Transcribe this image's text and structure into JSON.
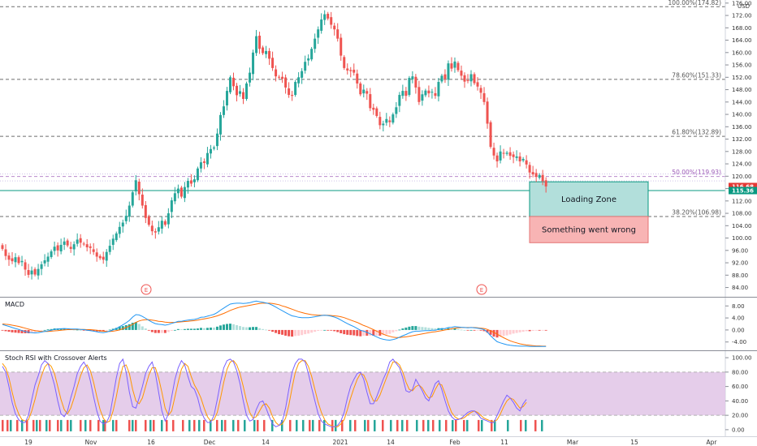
{
  "currency": "USD",
  "colors": {
    "up": "#26a69a",
    "down": "#ef5350",
    "fib": "#555555",
    "fib50": "#9b59b6",
    "price_line": "#089981",
    "price_tag": "#e53935",
    "support_tag": "#089981",
    "loading_fill": "#b2dfdb",
    "wrong_fill": "#f8b4b4",
    "rsi_band": "#e1c4e6",
    "k_line": "#7b61ff",
    "d_line": "#ff9800",
    "macd_line": "#2196f3",
    "signal_line": "#ff6d00"
  },
  "chart_data": [
    {
      "type": "candlestick",
      "y_ticks": [
        "176.00",
        "172.00",
        "168.00",
        "164.00",
        "160.00",
        "156.00",
        "152.00",
        "148.00",
        "144.00",
        "140.00",
        "136.00",
        "132.00",
        "128.00",
        "124.00",
        "120.00",
        "116.00",
        "112.00",
        "108.00",
        "104.00",
        "100.00",
        "96.00",
        "92.00",
        "88.00",
        "84.00"
      ],
      "ylim": [
        81,
        177
      ],
      "x_labels": [
        "19",
        "Nov",
        "16",
        "Dec",
        "14",
        "2021",
        "14",
        "Feb",
        "11",
        "Mar",
        "15",
        "Apr"
      ],
      "fib_levels": [
        {
          "label": "100.00%(174.82)",
          "value": 174.82
        },
        {
          "label": "78.60%(151.33)",
          "value": 151.33
        },
        {
          "label": "61.80%(132.89)",
          "value": 132.89
        },
        {
          "label": "50.00%(119.93)",
          "value": 119.93
        },
        {
          "label": "38.20%(106.98)",
          "value": 106.98
        }
      ],
      "last_price": {
        "label": "116.68",
        "value": 116.68
      },
      "support": {
        "label": "115.36",
        "value": 115.36
      },
      "zones": [
        {
          "label": "Loading Zone",
          "top": 118.2,
          "bottom": 106.98
        },
        {
          "label": "Something went wrong",
          "top": 106.98,
          "bottom": 98.5
        }
      ],
      "earnings_markers": [
        {
          "label": "E"
        },
        {
          "label": "E"
        }
      ],
      "closes": [
        96.5,
        94.2,
        93.0,
        92.5,
        93.8,
        91.9,
        92.6,
        89.8,
        88.1,
        89.5,
        88.2,
        90.0,
        91.5,
        92.8,
        94.0,
        95.7,
        97.2,
        96.0,
        97.8,
        98.9,
        97.6,
        96.5,
        98.0,
        99.5,
        98.5,
        98.0,
        97.0,
        96.8,
        95.5,
        94.0,
        93.5,
        93.0,
        95.5,
        97.5,
        99.8,
        101.5,
        103.6,
        105.0,
        107.2,
        110.5,
        114.8,
        118.7,
        114.2,
        110.5,
        106.5,
        104.3,
        102.2,
        101.8,
        103.5,
        105.6,
        104.3,
        108.0,
        112.2,
        114.5,
        116.0,
        113.4,
        116.5,
        118.5,
        117.6,
        119.0,
        122.5,
        124.5,
        124.3,
        127.5,
        128.8,
        129.3,
        133.8,
        139.8,
        142.6,
        147.6,
        152.0,
        149.1,
        146.2,
        147.5,
        145.0,
        150.0,
        153.5,
        160.0,
        165.3,
        161.2,
        159.8,
        160.5,
        158.0,
        155.0,
        152.3,
        152.0,
        151.5,
        148.7,
        146.3,
        146.0,
        150.5,
        152.0,
        154.0,
        157.0,
        158.1,
        161.2,
        164.5,
        167.5,
        170.7,
        172.4,
        171.0,
        169.0,
        167.5,
        164.5,
        159.0,
        155.0,
        154.2,
        154.0,
        153.5,
        150.0,
        146.5,
        148.0,
        146.7,
        142.0,
        141.5,
        139.5,
        136.5,
        137.0,
        138.5,
        137.5,
        140.0,
        142.3,
        146.3,
        147.6,
        146.0,
        151.8,
        152.3,
        148.7,
        144.0,
        146.5,
        147.7,
        146.8,
        147.3,
        146.0,
        150.5,
        152.5,
        151.5,
        156.5,
        154.8,
        157.1,
        154.3,
        152.5,
        150.6,
        151.0,
        153.0,
        150.1,
        149.0,
        147.0,
        144.0,
        137.0,
        129.5,
        126.7,
        124.8,
        128.0,
        127.4,
        127.6,
        126.6,
        126.2,
        126.4,
        124.8,
        125.6,
        123.8,
        121.2,
        120.6,
        119.8,
        120.4,
        118.4,
        116.7
      ],
      "macd": {
        "y_ticks": [
          "8.00",
          "4.00",
          "0.00",
          "-4.00"
        ],
        "ylim": [
          -6.5,
          10.5
        ],
        "macd_line": [
          1.8,
          1.5,
          1.2,
          0.8,
          0.5,
          0.2,
          -0.2,
          -0.5,
          -0.8,
          -0.9,
          -1.0,
          -0.9,
          -0.7,
          -0.5,
          -0.3,
          -0.1,
          0.2,
          0.3,
          0.4,
          0.5,
          0.4,
          0.3,
          0.3,
          0.3,
          0.2,
          0.1,
          -0.1,
          -0.2,
          -0.4,
          -0.6,
          -0.8,
          -0.9,
          -0.7,
          -0.4,
          0.0,
          0.5,
          1.1,
          1.7,
          2.4,
          3.2,
          4.3,
          5.1,
          5.0,
          4.5,
          3.9,
          3.2,
          2.6,
          2.1,
          1.9,
          1.8,
          1.6,
          1.8,
          2.2,
          2.5,
          2.9,
          2.9,
          3.1,
          3.3,
          3.4,
          3.5,
          3.8,
          4.2,
          4.3,
          4.6,
          4.9,
          5.2,
          5.8,
          6.6,
          7.3,
          8.0,
          8.6,
          8.8,
          8.9,
          8.9,
          8.8,
          8.9,
          9.1,
          9.4,
          9.6,
          9.4,
          9.2,
          9.0,
          8.7,
          8.2,
          7.6,
          7.0,
          6.4,
          5.8,
          5.2,
          4.7,
          4.5,
          4.2,
          4.1,
          4.1,
          4.1,
          4.2,
          4.4,
          4.6,
          4.8,
          4.9,
          4.8,
          4.6,
          4.3,
          3.9,
          3.3,
          2.7,
          2.1,
          1.6,
          1.1,
          0.5,
          -0.1,
          -0.4,
          -0.8,
          -1.3,
          -1.8,
          -2.3,
          -2.8,
          -3.1,
          -3.3,
          -3.4,
          -3.2,
          -2.9,
          -2.4,
          -1.9,
          -1.5,
          -1.0,
          -0.6,
          -0.4,
          -0.4,
          -0.3,
          -0.2,
          -0.2,
          -0.1,
          -0.1,
          0.2,
          0.4,
          0.5,
          0.8,
          0.9,
          1.1,
          1.0,
          0.9,
          0.8,
          0.7,
          0.8,
          0.7,
          0.6,
          0.4,
          0.1,
          -0.7,
          -1.9,
          -3.0,
          -3.9,
          -4.3,
          -4.6,
          -4.9,
          -5.1,
          -5.2,
          -5.3,
          -5.4,
          -5.4,
          -5.4,
          -5.5,
          -5.5,
          -5.5,
          -5.5,
          -5.5,
          -5.5
        ],
        "signal_line": [
          2.0,
          1.9,
          1.8,
          1.6,
          1.4,
          1.2,
          0.9,
          0.6,
          0.3,
          0.0,
          -0.2,
          -0.4,
          -0.5,
          -0.5,
          -0.5,
          -0.4,
          -0.3,
          -0.2,
          -0.1,
          0.0,
          0.1,
          0.1,
          0.2,
          0.2,
          0.2,
          0.2,
          0.1,
          0.1,
          0.0,
          -0.1,
          -0.3,
          -0.4,
          -0.5,
          -0.5,
          -0.4,
          -0.2,
          0.0,
          0.4,
          0.8,
          1.3,
          1.9,
          2.5,
          3.0,
          3.3,
          3.4,
          3.4,
          3.3,
          3.1,
          2.9,
          2.8,
          2.6,
          2.5,
          2.5,
          2.5,
          2.6,
          2.7,
          2.8,
          2.9,
          3.0,
          3.1,
          3.3,
          3.5,
          3.7,
          3.9,
          4.1,
          4.4,
          4.7,
          5.1,
          5.5,
          6.0,
          6.5,
          6.9,
          7.3,
          7.6,
          7.8,
          8.0,
          8.2,
          8.4,
          8.6,
          8.8,
          8.9,
          8.9,
          8.9,
          8.8,
          8.6,
          8.4,
          8.0,
          7.7,
          7.3,
          6.9,
          6.5,
          6.1,
          5.8,
          5.5,
          5.3,
          5.1,
          5.0,
          4.9,
          4.9,
          4.9,
          4.9,
          4.8,
          4.7,
          4.6,
          4.4,
          4.1,
          3.7,
          3.3,
          2.9,
          2.5,
          2.0,
          1.5,
          1.1,
          0.6,
          0.1,
          -0.4,
          -0.9,
          -1.4,
          -1.8,
          -2.1,
          -2.4,
          -2.5,
          -2.5,
          -2.4,
          -2.3,
          -2.1,
          -1.9,
          -1.7,
          -1.5,
          -1.3,
          -1.1,
          -0.9,
          -0.7,
          -0.6,
          -0.4,
          -0.2,
          0.0,
          0.2,
          0.4,
          0.6,
          0.7,
          0.8,
          0.8,
          0.8,
          0.8,
          0.8,
          0.7,
          0.6,
          0.5,
          0.2,
          -0.3,
          -0.8,
          -1.4,
          -2.0,
          -2.6,
          -3.1,
          -3.6,
          -4.0,
          -4.3,
          -4.6,
          -4.8,
          -5.0,
          -5.1,
          -5.2,
          -5.3,
          -5.3,
          -5.4,
          -5.4
        ]
      },
      "stoch_rsi": {
        "y_ticks": [
          "100.00",
          "80.00",
          "60.00",
          "40.00",
          "20.00",
          "0.00"
        ],
        "ylim": [
          -8,
          108
        ],
        "band": [
          20,
          80
        ],
        "k": [
          88,
          80,
          60,
          38,
          22,
          14,
          10,
          10,
          20,
          42,
          62,
          75,
          90,
          96,
          92,
          78,
          62,
          40,
          22,
          18,
          26,
          44,
          60,
          78,
          88,
          94,
          86,
          68,
          46,
          26,
          12,
          8,
          10,
          20,
          46,
          72,
          92,
          98,
          80,
          52,
          32,
          30,
          44,
          60,
          78,
          88,
          94,
          78,
          52,
          26,
          12,
          22,
          46,
          70,
          86,
          96,
          90,
          74,
          60,
          56,
          44,
          26,
          16,
          10,
          10,
          20,
          42,
          66,
          86,
          96,
          98,
          94,
          82,
          64,
          40,
          20,
          12,
          14,
          28,
          38,
          40,
          30,
          18,
          8,
          4,
          6,
          12,
          30,
          56,
          80,
          92,
          98,
          98,
          94,
          78,
          58,
          40,
          22,
          12,
          8,
          6,
          4,
          4,
          6,
          12,
          24,
          44,
          60,
          70,
          78,
          80,
          70,
          52,
          36,
          36,
          46,
          58,
          70,
          80,
          94,
          98,
          92,
          86,
          72,
          54,
          52,
          56,
          70,
          62,
          54,
          44,
          40,
          52,
          64,
          68,
          56,
          40,
          26,
          18,
          14,
          14,
          16,
          20,
          24,
          26,
          26,
          22,
          16,
          14,
          12,
          10,
          10,
          20,
          30,
          40,
          48,
          44,
          38,
          30,
          26,
          36,
          42
        ],
        "d": [
          92,
          86,
          72,
          52,
          34,
          22,
          14,
          12,
          14,
          26,
          42,
          60,
          75,
          87,
          92,
          88,
          78,
          60,
          42,
          28,
          22,
          30,
          44,
          60,
          75,
          86,
          90,
          82,
          66,
          46,
          28,
          16,
          10,
          12,
          26,
          46,
          70,
          88,
          90,
          78,
          56,
          40,
          36,
          44,
          60,
          76,
          86,
          86,
          72,
          52,
          30,
          20,
          26,
          46,
          66,
          84,
          92,
          88,
          74,
          62,
          54,
          44,
          30,
          18,
          12,
          14,
          24,
          44,
          66,
          84,
          94,
          96,
          90,
          78,
          60,
          40,
          24,
          16,
          18,
          26,
          34,
          36,
          30,
          18,
          10,
          6,
          8,
          16,
          34,
          58,
          80,
          92,
          96,
          96,
          88,
          74,
          56,
          38,
          24,
          14,
          8,
          6,
          4,
          4,
          8,
          14,
          28,
          44,
          58,
          70,
          78,
          76,
          66,
          50,
          40,
          40,
          48,
          60,
          72,
          84,
          94,
          94,
          90,
          80,
          66,
          56,
          54,
          60,
          62,
          58,
          50,
          44,
          46,
          56,
          64,
          62,
          50,
          36,
          24,
          18,
          15,
          15,
          17,
          21,
          24,
          26,
          24,
          20,
          16,
          14,
          12,
          11,
          14,
          22,
          32,
          40,
          44,
          42,
          36,
          30,
          32,
          38
        ],
        "alerts_down": [
          2,
          8,
          20,
          32,
          40,
          48,
          60,
          70,
          82,
          98,
          110,
          120,
          128,
          142,
          158,
          166,
          178,
          188,
          204,
          212,
          224,
          238,
          250,
          266,
          276,
          292,
          316,
          324,
          356,
          380,
          392,
          408,
          420,
          436,
          452,
          470,
          488,
          500,
          520,
          532,
          548,
          560,
          570,
          588,
          604,
          640,
          658
        ],
        "alerts_up": [
          12,
          26,
          44,
          56,
          74,
          86,
          104,
          126,
          138,
          162,
          184,
          198,
          232,
          244,
          258,
          272,
          286,
          300,
          312,
          334,
          346,
          364,
          372,
          384,
          398,
          412,
          430,
          448,
          460,
          480,
          494,
          512,
          526,
          540,
          556,
          574,
          592,
          608,
          624,
          646,
          666
        ]
      }
    }
  ],
  "indicators": {
    "macd_title": "MACD",
    "stoch_title": "Stoch RSI with Crossover Alerts"
  }
}
